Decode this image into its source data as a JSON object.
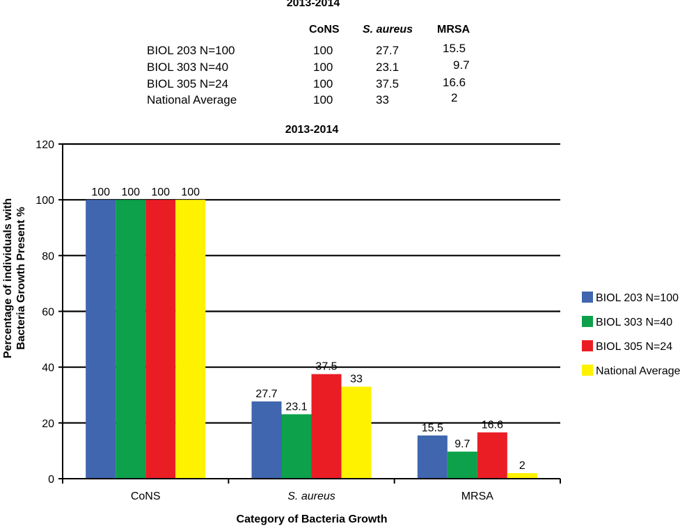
{
  "table": {
    "title": "2013-2014",
    "columns": [
      {
        "label": "CoNS",
        "italic": false
      },
      {
        "label": "S. aureus",
        "italic": true
      },
      {
        "label": "MRSA",
        "italic": false
      }
    ],
    "rows": [
      {
        "label": "BIOL 203 N=100",
        "values": [
          "100",
          "27.7",
          "15.5"
        ]
      },
      {
        "label": "BIOL 303 N=40",
        "values": [
          "100",
          "23.1",
          "9.7"
        ]
      },
      {
        "label": "BIOL 305 N=24",
        "values": [
          "100",
          "37.5",
          "16.6"
        ]
      },
      {
        "label": "National Average",
        "values": [
          "100",
          "33",
          "2"
        ]
      }
    ]
  },
  "chart_data": {
    "type": "bar",
    "title": "2013-2014",
    "xlabel": "Category of Bacteria Growth",
    "ylabel_line1": "Percentage of individuals with",
    "ylabel_line2": "Bacteria Growth Present %",
    "categories": [
      "CoNS",
      "S. aureus",
      "MRSA"
    ],
    "category_italic": [
      false,
      true,
      false
    ],
    "ylim": [
      0,
      120
    ],
    "yticks": [
      0,
      20,
      40,
      60,
      80,
      100,
      120
    ],
    "grid": true,
    "legend_position": "right",
    "series": [
      {
        "name": "BIOL 203 N=100",
        "values": [
          100,
          27.7,
          15.5
        ],
        "labels": [
          "100",
          "27.7",
          "15.5"
        ],
        "color": "#3f66ae"
      },
      {
        "name": "BIOL 303 N=40",
        "values": [
          100,
          23.1,
          9.7
        ],
        "labels": [
          "100",
          "23.1",
          "9.7"
        ],
        "color": "#0ca14a"
      },
      {
        "name": "BIOL 305 N=24",
        "values": [
          100,
          37.5,
          16.6
        ],
        "labels": [
          "100",
          "37.5",
          "16.6"
        ],
        "color": "#ea1d25"
      },
      {
        "name": "National Average",
        "values": [
          100,
          33,
          2
        ],
        "labels": [
          "100",
          "33",
          "2"
        ],
        "color": "#fff200"
      }
    ]
  }
}
